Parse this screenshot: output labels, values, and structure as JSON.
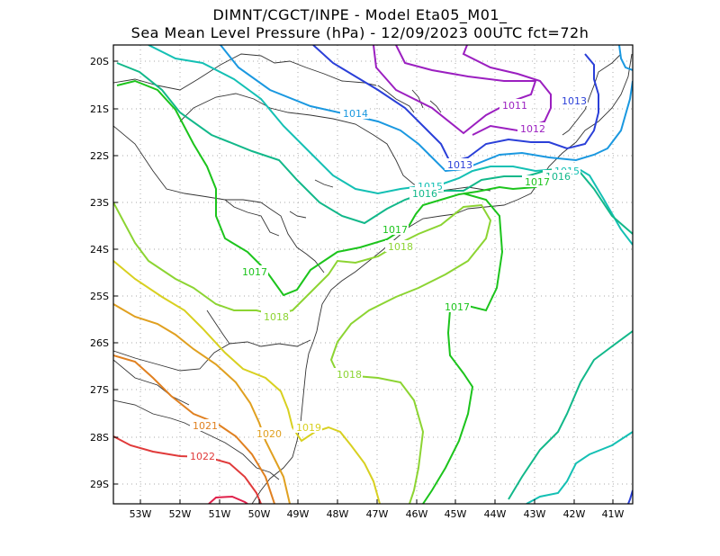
{
  "title": {
    "line1": "DIMNT/CGCT/INPE  -   Model Eta05_M01_",
    "line2": "Sea Mean Level Pressure (hPa) - 12/09/2023 00UTC fct=72h"
  },
  "axes": {
    "lat_ticks": [
      "20S",
      "21S",
      "22S",
      "23S",
      "24S",
      "25S",
      "26S",
      "27S",
      "28S",
      "29S"
    ],
    "lon_ticks": [
      "53W",
      "52W",
      "51W",
      "50W",
      "49W",
      "48W",
      "47W",
      "46W",
      "45W",
      "44W",
      "43W",
      "42W",
      "41W"
    ]
  },
  "contour_labels": [
    {
      "id": "l1011",
      "text": "1011",
      "color": "#9b1fc0"
    },
    {
      "id": "l1012",
      "text": "1012",
      "color": "#9b1fc0"
    },
    {
      "id": "l1013a",
      "text": "1013",
      "color": "#2a3fd8"
    },
    {
      "id": "l1013b",
      "text": "1013",
      "color": "#2a3fd8"
    },
    {
      "id": "l1014",
      "text": "1014",
      "color": "#1a98e0"
    },
    {
      "id": "l1015a",
      "text": "1015",
      "color": "#14c0b4"
    },
    {
      "id": "l1015b",
      "text": "1015",
      "color": "#14c0b4"
    },
    {
      "id": "l1016a",
      "text": "1016",
      "color": "#12b88a"
    },
    {
      "id": "l1016b",
      "text": "1016",
      "color": "#12b88a"
    },
    {
      "id": "l1017a",
      "text": "1017",
      "color": "#1cc41c"
    },
    {
      "id": "l1017b",
      "text": "1017",
      "color": "#1cc41c"
    },
    {
      "id": "l1017c",
      "text": "1017",
      "color": "#1cc41c"
    },
    {
      "id": "l1017d",
      "text": "1017",
      "color": "#1cc41c"
    },
    {
      "id": "l1018a",
      "text": "1018",
      "color": "#8cd432"
    },
    {
      "id": "l1018b",
      "text": "1018",
      "color": "#8cd432"
    },
    {
      "id": "l1018c",
      "text": "1018",
      "color": "#8cd432"
    },
    {
      "id": "l1019",
      "text": "1019",
      "color": "#d8d020"
    },
    {
      "id": "l1020",
      "text": "1020",
      "color": "#e0a020"
    },
    {
      "id": "l1021",
      "text": "1021",
      "color": "#e08020"
    },
    {
      "id": "l1022",
      "text": "1022",
      "color": "#e03a3a"
    }
  ]
}
